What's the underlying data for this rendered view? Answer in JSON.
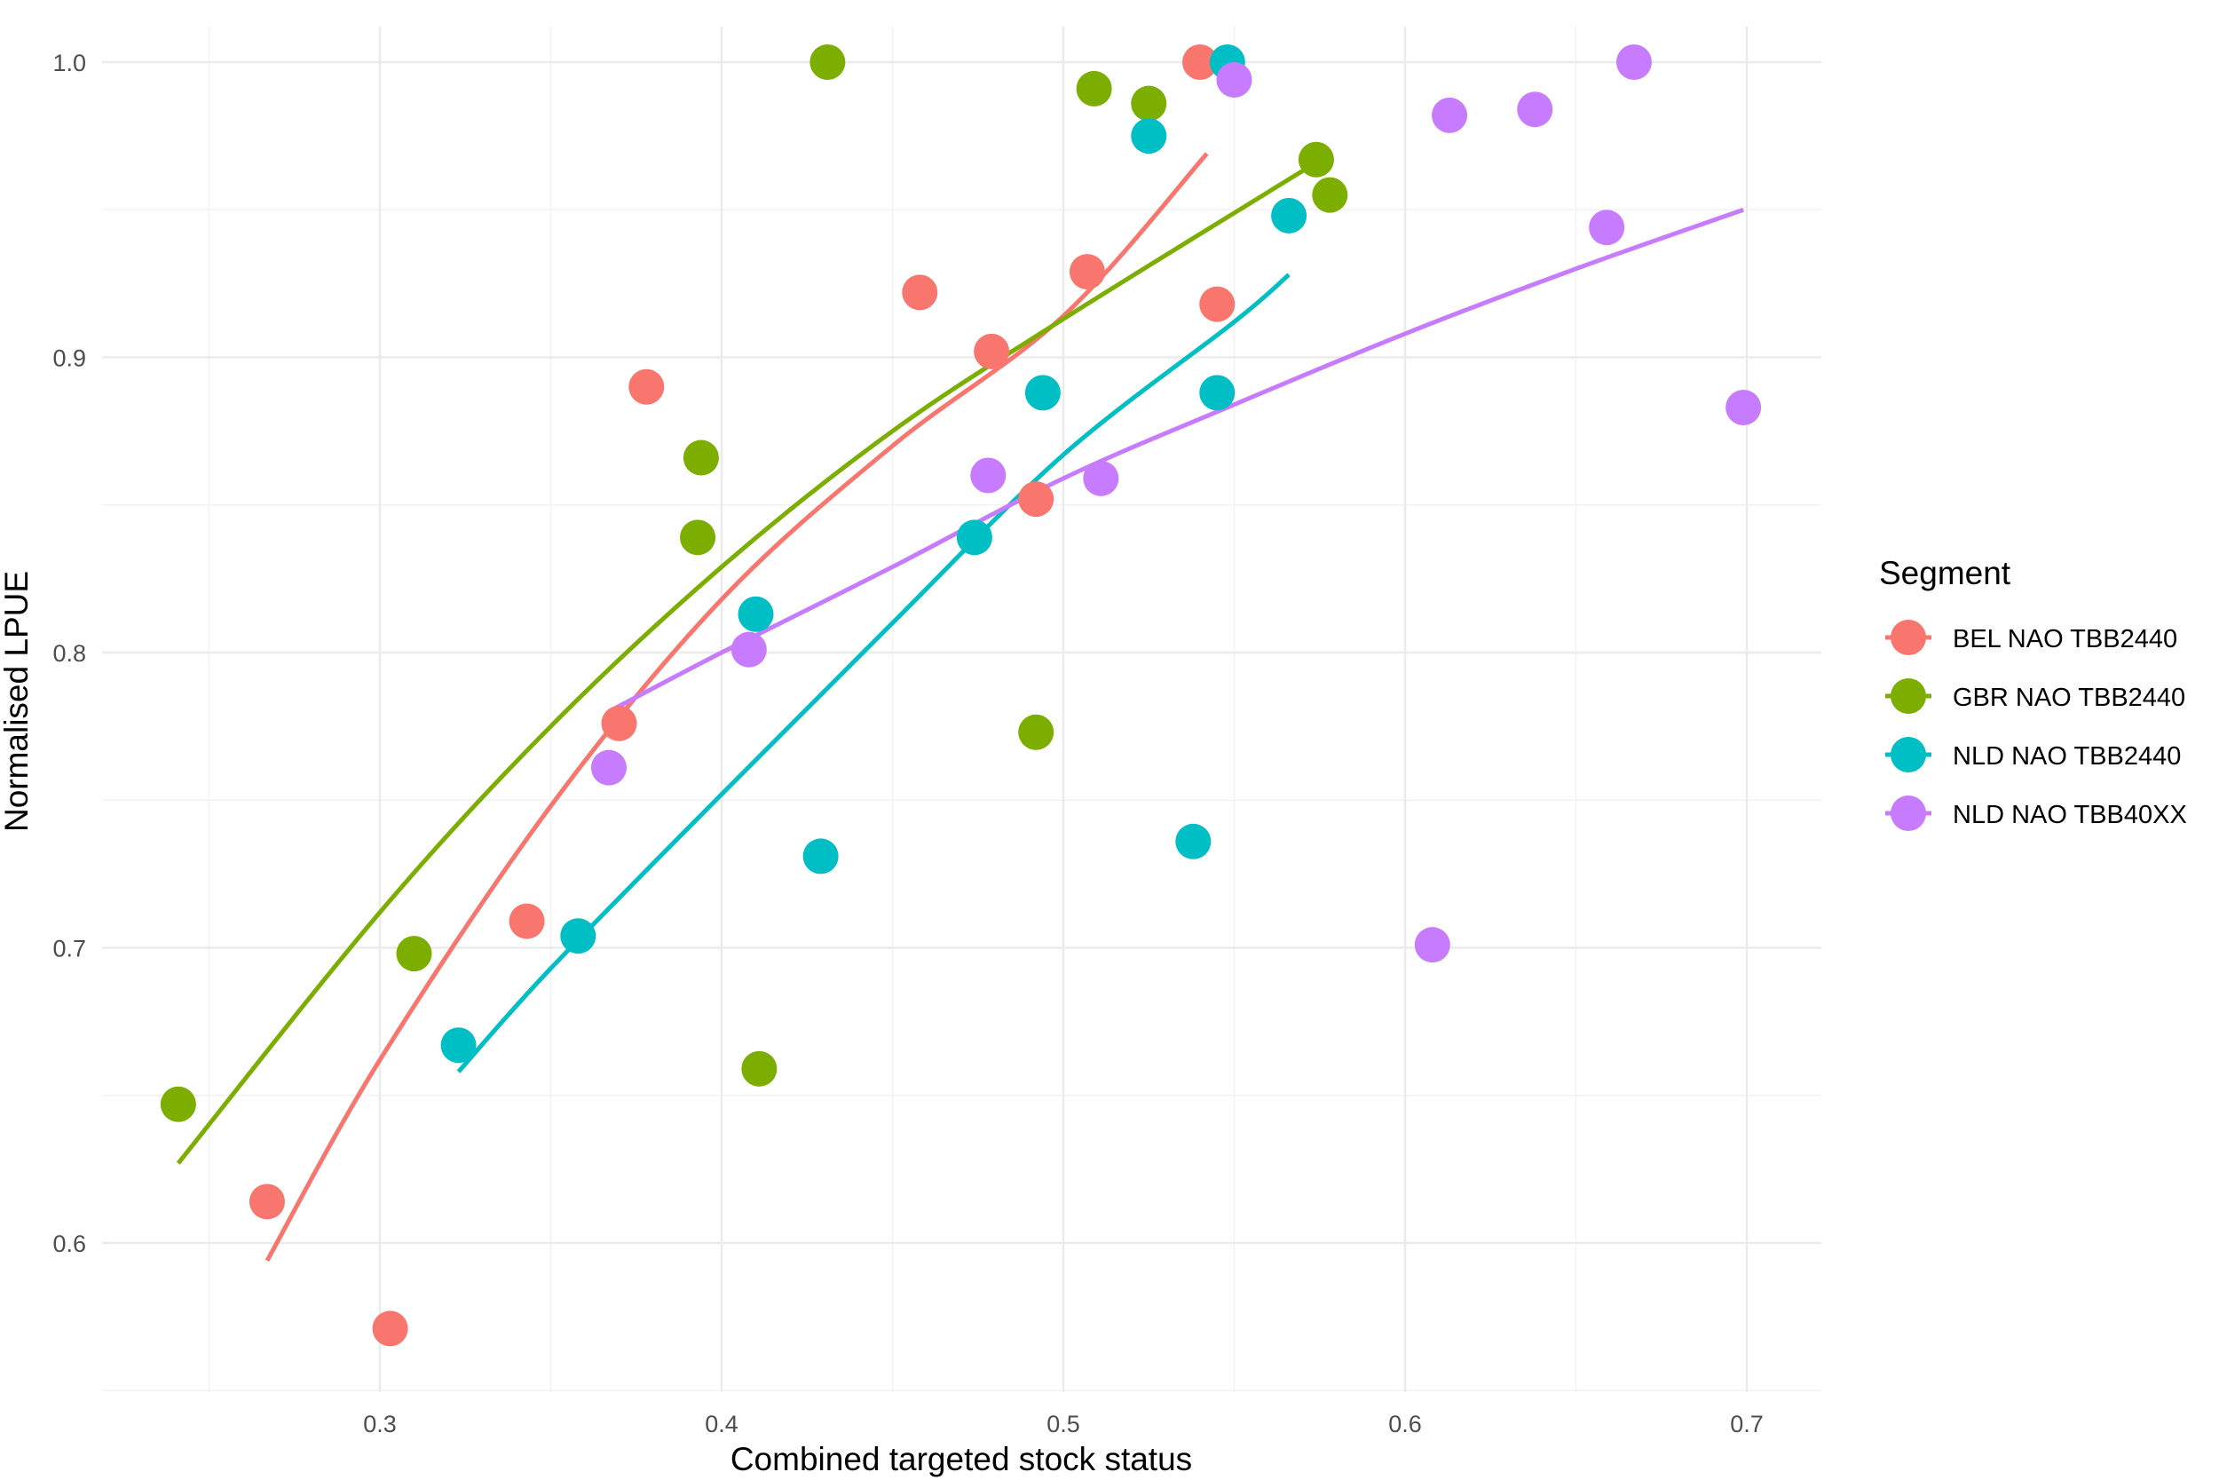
{
  "chart_data": {
    "type": "scatter",
    "title": "",
    "xlabel": "Combined targeted stock status",
    "ylabel": "Normalised LPUE",
    "xlim": [
      0.21,
      0.715
    ],
    "ylim": [
      0.55,
      1.01
    ],
    "x_ticks": [
      0.3,
      0.4,
      0.5,
      0.6,
      0.7
    ],
    "x_tick_labels": [
      "0.3",
      "0.4",
      "0.5",
      "0.6",
      "0.7"
    ],
    "y_ticks": [
      0.6,
      0.7,
      0.8,
      0.9,
      1.0
    ],
    "y_tick_labels": [
      "0.6",
      "0.7",
      "0.8",
      "0.9",
      "1.0"
    ],
    "grid": true,
    "legend_title": "Segment",
    "legend_position": "right",
    "series": [
      {
        "name": "BEL NAO TBB2440",
        "color": "#F8766D",
        "points": [
          [
            0.267,
            0.614
          ],
          [
            0.303,
            0.571
          ],
          [
            0.343,
            0.709
          ],
          [
            0.37,
            0.776
          ],
          [
            0.378,
            0.89
          ],
          [
            0.458,
            0.922
          ],
          [
            0.479,
            0.902
          ],
          [
            0.492,
            0.852
          ],
          [
            0.507,
            0.929
          ],
          [
            0.54,
            1.0
          ],
          [
            0.545,
            0.918
          ]
        ],
        "fit": [
          [
            0.267,
            0.594
          ],
          [
            0.3,
            0.662
          ],
          [
            0.35,
            0.748
          ],
          [
            0.4,
            0.818
          ],
          [
            0.45,
            0.87
          ],
          [
            0.5,
            0.914
          ],
          [
            0.542,
            0.969
          ]
        ]
      },
      {
        "name": "GBR NAO TBB2440",
        "color": "#7CAE00",
        "points": [
          [
            0.241,
            0.647
          ],
          [
            0.31,
            0.698
          ],
          [
            0.393,
            0.839
          ],
          [
            0.394,
            0.866
          ],
          [
            0.411,
            0.659
          ],
          [
            0.431,
            1.0
          ],
          [
            0.492,
            0.773
          ],
          [
            0.509,
            0.991
          ],
          [
            0.525,
            0.986
          ],
          [
            0.574,
            0.967
          ],
          [
            0.578,
            0.955
          ]
        ],
        "fit": [
          [
            0.241,
            0.627
          ],
          [
            0.3,
            0.712
          ],
          [
            0.35,
            0.775
          ],
          [
            0.4,
            0.829
          ],
          [
            0.45,
            0.875
          ],
          [
            0.5,
            0.913
          ],
          [
            0.574,
            0.966
          ]
        ]
      },
      {
        "name": "NLD NAO TBB2440",
        "color": "#00BFC4",
        "points": [
          [
            0.323,
            0.667
          ],
          [
            0.358,
            0.704
          ],
          [
            0.41,
            0.813
          ],
          [
            0.429,
            0.731
          ],
          [
            0.474,
            0.839
          ],
          [
            0.494,
            0.888
          ],
          [
            0.525,
            0.975
          ],
          [
            0.538,
            0.736
          ],
          [
            0.545,
            0.888
          ],
          [
            0.548,
            1.0
          ],
          [
            0.566,
            0.948
          ]
        ],
        "fit": [
          [
            0.323,
            0.658
          ],
          [
            0.35,
            0.693
          ],
          [
            0.4,
            0.752
          ],
          [
            0.45,
            0.81
          ],
          [
            0.5,
            0.867
          ],
          [
            0.55,
            0.912
          ],
          [
            0.566,
            0.928
          ]
        ]
      },
      {
        "name": "NLD NAO TBB40XX",
        "color": "#C77CFF",
        "points": [
          [
            0.367,
            0.761
          ],
          [
            0.408,
            0.801
          ],
          [
            0.478,
            0.86
          ],
          [
            0.511,
            0.859
          ],
          [
            0.55,
            0.994
          ],
          [
            0.608,
            0.701
          ],
          [
            0.613,
            0.982
          ],
          [
            0.638,
            0.984
          ],
          [
            0.659,
            0.944
          ],
          [
            0.667,
            1.0
          ],
          [
            0.699,
            0.883
          ]
        ],
        "fit": [
          [
            0.367,
            0.78
          ],
          [
            0.4,
            0.8
          ],
          [
            0.45,
            0.829
          ],
          [
            0.5,
            0.859
          ],
          [
            0.55,
            0.884
          ],
          [
            0.6,
            0.908
          ],
          [
            0.65,
            0.93
          ],
          [
            0.699,
            0.95
          ]
        ]
      }
    ]
  }
}
